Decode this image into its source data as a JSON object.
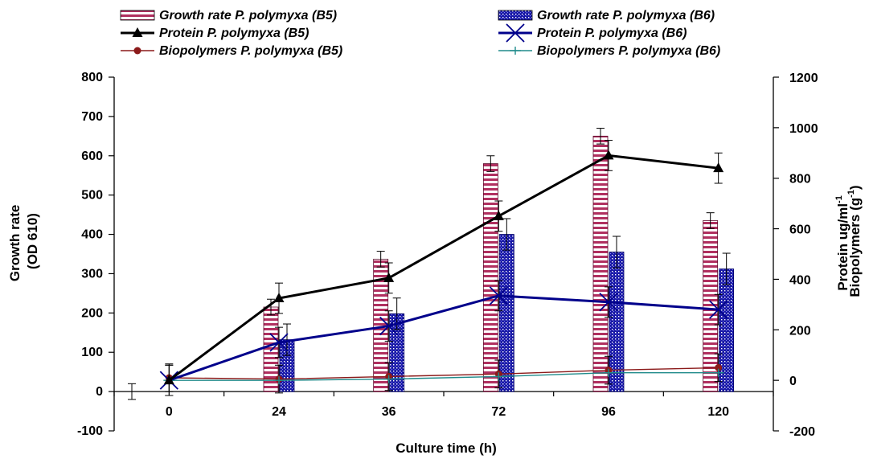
{
  "chart_data": {
    "type": "bar",
    "categories": [
      "0",
      "24",
      "36",
      "72",
      "96",
      "120"
    ],
    "xlabel": "Culture time (h)",
    "ylabel_left": [
      "Growth rate",
      "(OD 610)"
    ],
    "ylabel_right": [
      "Protein ug/ml-1",
      "Biopolymers (g-1)"
    ],
    "ylim_left": [
      -100,
      800
    ],
    "ylim_right": [
      -200,
      1200
    ],
    "yticks_left": [
      800,
      700,
      600,
      500,
      400,
      300,
      200,
      100,
      0,
      -100
    ],
    "yticks_right": [
      1200,
      1000,
      800,
      600,
      400,
      200,
      0,
      -200
    ],
    "legend_position": "top",
    "grid": false,
    "series": [
      {
        "name": "Growth rate P. polymyxa (B5)",
        "kind": "bar",
        "axis": "left",
        "pattern": "horizontal-stripes",
        "color": "#b03060",
        "values": [
          null,
          215,
          337,
          580,
          650,
          435
        ],
        "errors": [
          null,
          20,
          20,
          20,
          20,
          20
        ]
      },
      {
        "name": "Growth rate P. polymyxa (B6)",
        "kind": "bar",
        "axis": "left",
        "pattern": "dots",
        "color": "#1a1aa6",
        "values": [
          null,
          132,
          198,
          400,
          355,
          312
        ],
        "errors": [
          null,
          40,
          40,
          40,
          40,
          40
        ]
      },
      {
        "name": "Protein P. polymyxa (B5)",
        "kind": "line",
        "marker": "triangle",
        "axis": "right",
        "color": "#000000",
        "values": [
          0,
          325,
          405,
          650,
          890,
          840
        ],
        "errors": [
          60,
          60,
          60,
          60,
          60,
          60
        ]
      },
      {
        "name": "Protein P. polymyxa (B6)",
        "kind": "line",
        "marker": "x",
        "axis": "right",
        "color": "#00008b",
        "values": [
          0,
          150,
          215,
          335,
          310,
          280
        ],
        "errors": [
          60,
          60,
          60,
          60,
          60,
          60
        ]
      },
      {
        "name": "Biopolymers P. polymyxa (B5)",
        "kind": "line",
        "marker": "circle",
        "axis": "right",
        "color": "#8b1a1a",
        "values": [
          10,
          5,
          15,
          25,
          40,
          50
        ],
        "errors": [
          55,
          55,
          55,
          55,
          55,
          55
        ]
      },
      {
        "name": "Biopolymers P. polymyxa (B6)",
        "kind": "line",
        "marker": "plus",
        "axis": "right",
        "color": "#208b8b",
        "values": [
          0,
          0,
          5,
          15,
          30,
          30
        ],
        "errors": [
          null,
          null,
          null,
          null,
          null,
          null
        ]
      }
    ]
  }
}
